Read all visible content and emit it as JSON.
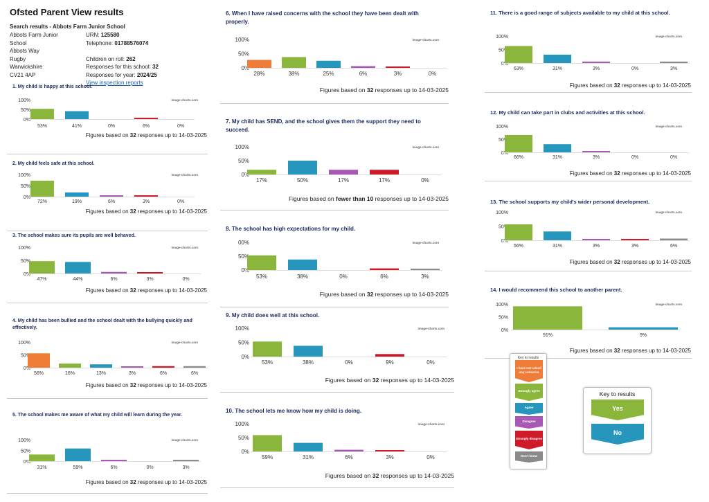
{
  "page": {
    "title": "Ofsted Parent View results",
    "search_results": "Search results - Abbots Farm Junior School",
    "address": [
      "Abbots Farm Junior",
      "School",
      "Abbots Way",
      "Rugby",
      "Warwickshire",
      "CV21 4AP"
    ],
    "urn_label": "URN:",
    "urn": "125580",
    "telephone_label": "Telephone:",
    "telephone": "01788576074",
    "children_label": "Children on roll:",
    "children": "262",
    "responses_label": "Responses for this school:",
    "responses": "32",
    "year_label": "Responses for year:",
    "year": "2024/25",
    "inspection_link": "View inspection reports",
    "watermark": "image-charts.com"
  },
  "colors": {
    "not_raised": "#ef7d37",
    "strongly_agree": "#8bb63c",
    "agree": "#2696bc",
    "disagree": "#a859b4",
    "strongly_disagree": "#cf1a2a",
    "dont_know": "#8a8a8a"
  },
  "chart_data": [
    {
      "id": 1,
      "type": "bar",
      "title": "1. My child is happy at this school.",
      "yticks": [
        "100%",
        "50%",
        "0%"
      ],
      "ylim": [
        0,
        100
      ],
      "values": [
        53,
        41,
        0,
        6,
        0
      ],
      "labels": [
        "53%",
        "41%",
        "0%",
        "6%",
        "0%"
      ],
      "colors": [
        "strongly_agree",
        "agree",
        "disagree",
        "strongly_disagree",
        "dont_know"
      ],
      "foot_pre": "Figures based on ",
      "foot_bold": "32",
      "foot_post": " responses up to 14-03-2025"
    },
    {
      "id": 2,
      "type": "bar",
      "title": "2. My child feels safe at this school.",
      "yticks": [
        "100%",
        "50%",
        "0%"
      ],
      "ylim": [
        0,
        100
      ],
      "values": [
        72,
        19,
        6,
        3,
        0
      ],
      "labels": [
        "72%",
        "19%",
        "6%",
        "3%",
        "0%"
      ],
      "colors": [
        "strongly_agree",
        "agree",
        "disagree",
        "strongly_disagree",
        "dont_know"
      ],
      "foot_pre": "Figures based on ",
      "foot_bold": "32",
      "foot_post": " responses up to 14-03-2025"
    },
    {
      "id": 3,
      "type": "bar",
      "title": "3. The school makes sure its pupils are well behaved.",
      "yticks": [
        "100%",
        "50%",
        "0%"
      ],
      "ylim": [
        0,
        100
      ],
      "values": [
        47,
        44,
        6,
        3,
        0
      ],
      "labels": [
        "47%",
        "44%",
        "6%",
        "3%",
        "0%"
      ],
      "colors": [
        "strongly_agree",
        "agree",
        "disagree",
        "strongly_disagree",
        "dont_know"
      ],
      "foot_pre": "Figures based on ",
      "foot_bold": "32",
      "foot_post": " responses up to 14-03-2025"
    },
    {
      "id": 4,
      "type": "bar",
      "title": "4. My child has been bullied and the school dealt with the bullying quickly and effectively.",
      "yticks": [
        "100%",
        "50%",
        "0%"
      ],
      "ylim": [
        0,
        100
      ],
      "values": [
        56,
        16,
        13,
        3,
        6,
        6
      ],
      "labels": [
        "56%",
        "16%",
        "13%",
        "3%",
        "6%",
        "6%"
      ],
      "colors": [
        "not_raised",
        "strongly_agree",
        "agree",
        "disagree",
        "strongly_disagree",
        "dont_know"
      ],
      "foot_pre": "Figures based on ",
      "foot_bold": "32",
      "foot_post": " responses up to 14-03-2025"
    },
    {
      "id": 5,
      "type": "bar",
      "title": "5. The school makes me aware of what my child will learn during the year.",
      "yticks": [
        "100%",
        "50%",
        "0%"
      ],
      "ylim": [
        0,
        100
      ],
      "values": [
        31,
        59,
        6,
        0,
        3
      ],
      "labels": [
        "31%",
        "59%",
        "6%",
        "0%",
        "3%"
      ],
      "colors": [
        "strongly_agree",
        "agree",
        "disagree",
        "strongly_disagree",
        "dont_know"
      ],
      "foot_pre": "Figures based on ",
      "foot_bold": "32",
      "foot_post": " responses up to 14-03-2025"
    },
    {
      "id": 6,
      "type": "bar",
      "title": "6. When I have raised concerns with the school they have been dealt with properly.",
      "yticks": [
        "100%",
        "50%",
        "0%"
      ],
      "ylim": [
        0,
        100
      ],
      "values": [
        28,
        38,
        25,
        6,
        3,
        0
      ],
      "labels": [
        "28%",
        "38%",
        "25%",
        "6%",
        "3%",
        "0%"
      ],
      "colors": [
        "not_raised",
        "strongly_agree",
        "agree",
        "disagree",
        "strongly_disagree",
        "dont_know"
      ],
      "foot_pre": "Figures based on ",
      "foot_bold": "32",
      "foot_post": " responses up to 14-03-2025"
    },
    {
      "id": 7,
      "type": "bar",
      "title": "7. My child has SEND, and the school gives them the support they need to succeed.",
      "yticks": [
        "100%",
        "50%",
        "0%"
      ],
      "ylim": [
        0,
        100
      ],
      "values": [
        17,
        50,
        17,
        17,
        0
      ],
      "labels": [
        "17%",
        "50%",
        "17%",
        "17%",
        "0%"
      ],
      "colors": [
        "strongly_agree",
        "agree",
        "disagree",
        "strongly_disagree",
        "dont_know"
      ],
      "foot_pre": "Figures based on ",
      "foot_bold": "fewer than 10",
      "foot_post": " responses up to 14-03-2025"
    },
    {
      "id": 8,
      "type": "bar",
      "title": "8. The school has high expectations for my child.",
      "yticks": [
        "00%",
        "50%",
        "0%"
      ],
      "ylim": [
        0,
        100
      ],
      "values": [
        53,
        38,
        0,
        6,
        3
      ],
      "labels": [
        "53%",
        "38%",
        "0%",
        "6%",
        "3%"
      ],
      "colors": [
        "strongly_agree",
        "agree",
        "disagree",
        "strongly_disagree",
        "dont_know"
      ],
      "foot_pre": "Figures based on ",
      "foot_bold": "32",
      "foot_post": " responses up to 14-03-2025"
    },
    {
      "id": 9,
      "type": "bar",
      "title": "9. My child does well at this school.",
      "yticks": [
        "100%",
        "50%",
        "0%"
      ],
      "ylim": [
        0,
        100
      ],
      "values": [
        53,
        38,
        0,
        9,
        0
      ],
      "labels": [
        "53%",
        "38%",
        "0%",
        "9%",
        "0%"
      ],
      "colors": [
        "strongly_agree",
        "agree",
        "disagree",
        "strongly_disagree",
        "dont_know"
      ],
      "foot_pre": "Figures based on ",
      "foot_bold": "32",
      "foot_post": " responses up to 14-03-2025"
    },
    {
      "id": 10,
      "type": "bar",
      "title": "10. The school lets me know how my child is doing.",
      "yticks": [
        "100%",
        "50%",
        "0%"
      ],
      "ylim": [
        0,
        100
      ],
      "values": [
        59,
        31,
        6,
        3,
        0
      ],
      "labels": [
        "59%",
        "31%",
        "6%",
        "3%",
        "0%"
      ],
      "colors": [
        "strongly_agree",
        "agree",
        "disagree",
        "strongly_disagree",
        "dont_know"
      ],
      "foot_pre": "Figures based on ",
      "foot_bold": "32",
      "foot_post": " responses up to 14-03-2025"
    },
    {
      "id": 11,
      "type": "bar",
      "title": "11. There is a good range of subjects available to my child at this school.",
      "yticks": [
        "100%",
        "50%",
        "0%"
      ],
      "ylim": [
        0,
        100
      ],
      "values": [
        63,
        31,
        3,
        0,
        3
      ],
      "labels": [
        "63%",
        "31%",
        "3%",
        "0%",
        "3%"
      ],
      "colors": [
        "strongly_agree",
        "agree",
        "disagree",
        "strongly_disagree",
        "dont_know"
      ],
      "foot_pre": "Figures based on ",
      "foot_bold": "32",
      "foot_post": " responses up to 14-03-2025"
    },
    {
      "id": 12,
      "type": "bar",
      "title": "12. My child can take part in clubs and activities at this school.",
      "yticks": [
        "100%",
        "50%",
        "0%"
      ],
      "ylim": [
        0,
        100
      ],
      "values": [
        66,
        31,
        3,
        0,
        0
      ],
      "labels": [
        "66%",
        "31%",
        "3%",
        "0%",
        "0%"
      ],
      "colors": [
        "strongly_agree",
        "agree",
        "disagree",
        "strongly_disagree",
        "dont_know"
      ],
      "foot_pre": "Figures based on ",
      "foot_bold": "32",
      "foot_post": " responses up to 14-03-2025"
    },
    {
      "id": 13,
      "type": "bar",
      "title": "13. The school supports my child's wider personal development.",
      "yticks": [
        "100%",
        "50%",
        "0%"
      ],
      "ylim": [
        0,
        100
      ],
      "values": [
        56,
        31,
        3,
        3,
        6
      ],
      "labels": [
        "56%",
        "31%",
        "3%",
        "3%",
        "6%"
      ],
      "colors": [
        "strongly_agree",
        "agree",
        "disagree",
        "strongly_disagree",
        "dont_know"
      ],
      "foot_pre": "Figures based on ",
      "foot_bold": "32",
      "foot_post": " responses up to 14-03-2025"
    },
    {
      "id": 14,
      "type": "bar",
      "title": "14. I would recommend this school to another parent.",
      "yticks": [
        "100%",
        "50%",
        "0%"
      ],
      "ylim": [
        0,
        100
      ],
      "values": [
        91,
        9
      ],
      "labels": [
        "91%",
        "9%"
      ],
      "colors": [
        "strongly_agree",
        "agree"
      ],
      "foot_pre": "Figures based on ",
      "foot_bold": "32",
      "foot_post": " responses up to 14-03-2025"
    }
  ],
  "key_small": {
    "title": "Key to results",
    "items": [
      {
        "label": "I have not raised any concerns",
        "color": "not_raised"
      },
      {
        "label": "Strongly agree",
        "color": "strongly_agree"
      },
      {
        "label": "Agree",
        "color": "agree"
      },
      {
        "label": "Disagree",
        "color": "disagree"
      },
      {
        "label": "Strongly disagree",
        "color": "strongly_disagree"
      },
      {
        "label": "Don't know",
        "color": "dont_know"
      }
    ]
  },
  "key_large": {
    "title": "Key to results",
    "items": [
      {
        "label": "Yes",
        "color": "strongly_agree"
      },
      {
        "label": "No",
        "color": "agree"
      }
    ]
  }
}
